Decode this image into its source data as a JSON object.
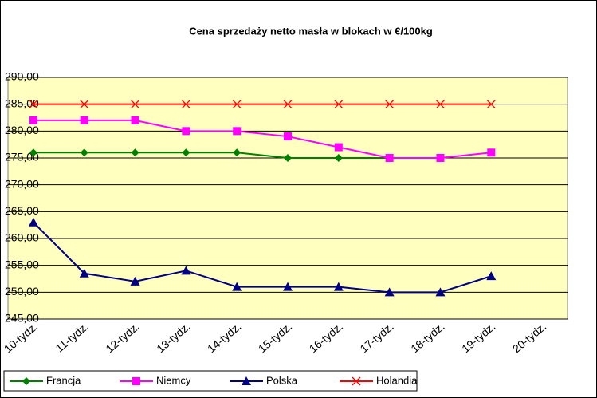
{
  "chart_data": {
    "type": "line",
    "title": "Cena sprzedaży netto masła w blokach w €/100kg",
    "categories": [
      "10-tydz.",
      "11-tydz.",
      "12-tydz.",
      "13-tydz.",
      "14-tydz.",
      "15-tydz.",
      "16-tydz.",
      "17-tydz.",
      "18-tydz.",
      "19-tydz.",
      "20-tydz."
    ],
    "series": [
      {
        "name": "Francja",
        "color": "#008000",
        "marker": "diamond",
        "values": [
          276,
          276,
          276,
          276,
          276,
          275,
          275,
          275,
          null,
          null,
          null
        ]
      },
      {
        "name": "Niemcy",
        "color": "#ff00ff",
        "marker": "square",
        "values": [
          282,
          282,
          282,
          280,
          280,
          279,
          277,
          275,
          275,
          276,
          null
        ]
      },
      {
        "name": "Polska",
        "color": "#000080",
        "marker": "triangle",
        "values": [
          263,
          253.5,
          252,
          254,
          251,
          251,
          251,
          250,
          250,
          253,
          null
        ]
      },
      {
        "name": "Holandia",
        "color": "#ff0000",
        "marker": "x",
        "values": [
          285,
          285,
          285,
          285,
          285,
          285,
          285,
          285,
          285,
          285,
          null
        ]
      }
    ],
    "ylim": [
      245,
      290
    ],
    "yticks": [
      {
        "value": 245,
        "label": "245,00"
      },
      {
        "value": 250,
        "label": "250,00"
      },
      {
        "value": 255,
        "label": "255,00"
      },
      {
        "value": 260,
        "label": "260,00"
      },
      {
        "value": 265,
        "label": "265,00"
      },
      {
        "value": 270,
        "label": "270,00"
      },
      {
        "value": 275,
        "label": "275,00"
      },
      {
        "value": 280,
        "label": "280,00"
      },
      {
        "value": 285,
        "label": "285,00"
      },
      {
        "value": 290,
        "label": "290,00"
      }
    ],
    "grid": true,
    "legend": "bottom"
  }
}
